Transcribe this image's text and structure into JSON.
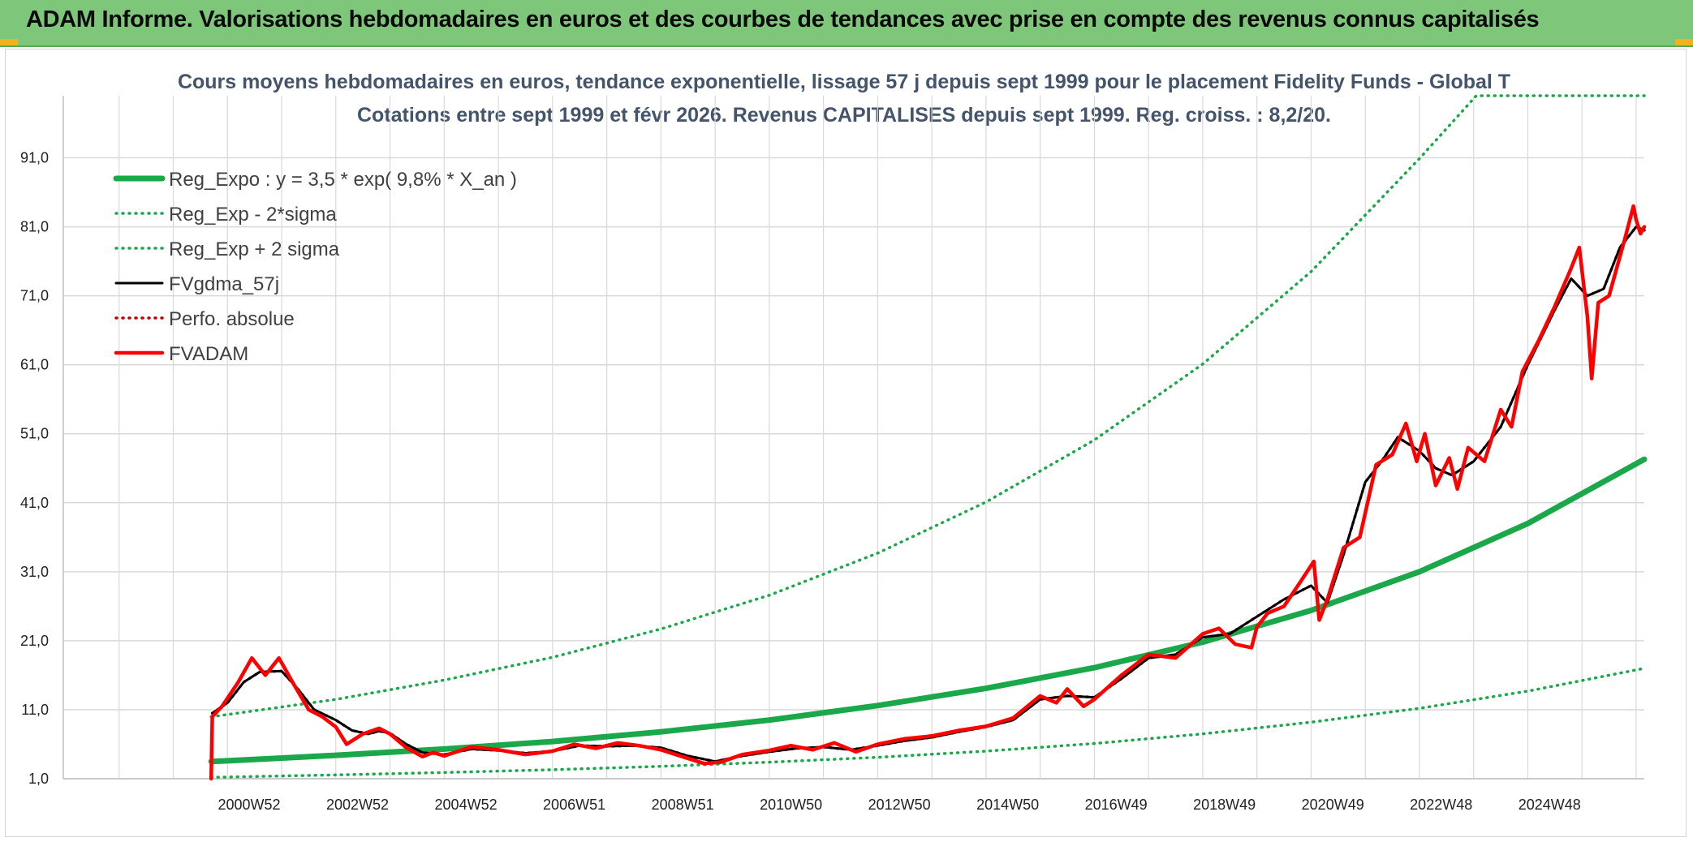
{
  "header": {
    "banner_title": "ADAM Informe. Valorisations hebdomadaires en euros et des courbes de tendances avec prise en compte des revenus connus capitalisés"
  },
  "colors": {
    "banner_bg": "#7dc67a",
    "regression": "#1aa84a",
    "price": "#ff0000",
    "moving_average": "#000000",
    "grid": "#d9d9d9"
  },
  "chart_data": {
    "type": "line",
    "title": "Cours moyens hebdomadaires en euros, tendance exponentielle, lissage 57 j depuis sept 1999 pour le placement Fidelity Funds - Global T",
    "subtitle": "Cotations entre sept 1999 et févr 2026. Revenus CAPITALISES depuis sept 1999. Reg. croiss. : 8,2/20.",
    "xlabel": "",
    "ylabel": "",
    "ylim": [
      1,
      100
    ],
    "y_ticks": [
      "1,0",
      "11,0",
      "21,0",
      "31,0",
      "41,0",
      "51,0",
      "61,0",
      "71,0",
      "81,0",
      "91,0"
    ],
    "x_ticks": [
      "2000W52",
      "2002W52",
      "2004W52",
      "2006W51",
      "2008W51",
      "2010W50",
      "2012W50",
      "2014W50",
      "2016W49",
      "2018W49",
      "2020W49",
      "2022W48",
      "2024W48"
    ],
    "grid": true,
    "legend_position": "top-left",
    "x_start": 1999.7,
    "x_end": 2026.15,
    "series": [
      {
        "name": "Reg_Expo : y = 3,5 * exp( 9,8% *  X_an )",
        "style": "solid-thick",
        "color": "#1aa84a",
        "points": [
          [
            1999.7,
            3.5
          ],
          [
            2000.0,
            3.6
          ],
          [
            2002.0,
            4.4
          ],
          [
            2004.0,
            5.3
          ],
          [
            2006.0,
            6.4
          ],
          [
            2008.0,
            7.8
          ],
          [
            2010.0,
            9.5
          ],
          [
            2012.0,
            11.6
          ],
          [
            2014.0,
            14.1
          ],
          [
            2016.0,
            17.1
          ],
          [
            2018.0,
            20.8
          ],
          [
            2020.0,
            25.4
          ],
          [
            2022.0,
            31.0
          ],
          [
            2024.0,
            38.0
          ],
          [
            2026.15,
            47.3
          ]
        ]
      },
      {
        "name": "Reg_Exp - 2*sigma",
        "style": "dotted",
        "color": "#1aa84a",
        "points": [
          [
            1999.7,
            1.2
          ],
          [
            2000.0,
            1.25
          ],
          [
            2002.0,
            1.55
          ],
          [
            2004.0,
            1.9
          ],
          [
            2006.0,
            2.3
          ],
          [
            2008.0,
            2.8
          ],
          [
            2010.0,
            3.4
          ],
          [
            2012.0,
            4.1
          ],
          [
            2014.0,
            5.0
          ],
          [
            2016.0,
            6.1
          ],
          [
            2018.0,
            7.5
          ],
          [
            2020.0,
            9.2
          ],
          [
            2022.0,
            11.2
          ],
          [
            2024.0,
            13.7
          ],
          [
            2026.15,
            17.0
          ]
        ]
      },
      {
        "name": "Reg_Exp + 2 sigma",
        "style": "dotted",
        "color": "#1aa84a",
        "points": [
          [
            1999.7,
            10.0
          ],
          [
            2000.0,
            10.3
          ],
          [
            2002.0,
            12.5
          ],
          [
            2004.0,
            15.3
          ],
          [
            2006.0,
            18.6
          ],
          [
            2008.0,
            22.7
          ],
          [
            2010.0,
            27.6
          ],
          [
            2012.0,
            33.7
          ],
          [
            2014.0,
            41.1
          ],
          [
            2016.0,
            50.1
          ],
          [
            2018.0,
            61.1
          ],
          [
            2020.0,
            74.5
          ],
          [
            2022.0,
            90.9
          ],
          [
            2023.05,
            100.0
          ],
          [
            2026.15,
            100.0
          ]
        ]
      },
      {
        "name": "FVgdma_57j",
        "style": "solid",
        "color": "#000000",
        "points": [
          [
            1999.72,
            10.5
          ],
          [
            2000.0,
            12.0
          ],
          [
            2000.3,
            15.0
          ],
          [
            2000.6,
            16.5
          ],
          [
            2001.0,
            16.6
          ],
          [
            2001.3,
            14.0
          ],
          [
            2001.6,
            11.0
          ],
          [
            2002.0,
            9.5
          ],
          [
            2002.3,
            8.0
          ],
          [
            2002.6,
            7.5
          ],
          [
            2002.8,
            7.9
          ],
          [
            2003.0,
            7.6
          ],
          [
            2003.3,
            6.0
          ],
          [
            2003.6,
            4.8
          ],
          [
            2004.0,
            4.5
          ],
          [
            2004.5,
            5.3
          ],
          [
            2005.0,
            5.1
          ],
          [
            2005.5,
            4.7
          ],
          [
            2006.0,
            5.0
          ],
          [
            2006.5,
            5.8
          ],
          [
            2007.0,
            5.7
          ],
          [
            2007.5,
            5.8
          ],
          [
            2008.0,
            5.5
          ],
          [
            2008.5,
            4.3
          ],
          [
            2009.0,
            3.5
          ],
          [
            2009.5,
            4.3
          ],
          [
            2010.0,
            4.9
          ],
          [
            2010.5,
            5.4
          ],
          [
            2011.0,
            5.6
          ],
          [
            2011.5,
            5.2
          ],
          [
            2012.0,
            5.8
          ],
          [
            2012.5,
            6.5
          ],
          [
            2013.0,
            7.0
          ],
          [
            2013.5,
            7.8
          ],
          [
            2014.0,
            8.5
          ],
          [
            2014.5,
            9.5
          ],
          [
            2015.0,
            12.5
          ],
          [
            2015.5,
            13.0
          ],
          [
            2016.0,
            12.8
          ],
          [
            2016.5,
            15.5
          ],
          [
            2017.0,
            18.5
          ],
          [
            2017.5,
            19.0
          ],
          [
            2018.0,
            21.5
          ],
          [
            2018.5,
            22.0
          ],
          [
            2019.0,
            24.5
          ],
          [
            2019.5,
            27.0
          ],
          [
            2020.0,
            29.0
          ],
          [
            2020.3,
            26.5
          ],
          [
            2020.6,
            33.5
          ],
          [
            2021.0,
            44.0
          ],
          [
            2021.3,
            47.0
          ],
          [
            2021.6,
            50.5
          ],
          [
            2022.0,
            48.5
          ],
          [
            2022.3,
            46.0
          ],
          [
            2022.6,
            45.0
          ],
          [
            2023.0,
            47.0
          ],
          [
            2023.5,
            52.0
          ],
          [
            2024.0,
            61.0
          ],
          [
            2024.5,
            69.0
          ],
          [
            2024.8,
            73.5
          ],
          [
            2025.1,
            71.0
          ],
          [
            2025.4,
            72.0
          ],
          [
            2025.7,
            78.0
          ],
          [
            2026.0,
            81.0
          ],
          [
            2026.15,
            80.5
          ]
        ]
      },
      {
        "name": "Perfo. absolue",
        "style": "dotted",
        "color": "#c00000",
        "points": [
          [
            1999.72,
            10.5
          ],
          [
            2000.0,
            12.0
          ],
          [
            2000.3,
            15.0
          ],
          [
            2000.6,
            16.5
          ],
          [
            2001.0,
            16.6
          ],
          [
            2001.3,
            14.0
          ],
          [
            2001.6,
            11.0
          ],
          [
            2002.0,
            9.5
          ],
          [
            2002.3,
            8.0
          ],
          [
            2002.6,
            7.5
          ],
          [
            2002.8,
            7.9
          ],
          [
            2003.0,
            7.6
          ],
          [
            2003.3,
            6.0
          ],
          [
            2003.6,
            4.8
          ],
          [
            2004.0,
            4.5
          ],
          [
            2004.5,
            5.3
          ],
          [
            2005.0,
            5.1
          ],
          [
            2005.5,
            4.7
          ],
          [
            2006.0,
            5.0
          ],
          [
            2006.5,
            5.8
          ],
          [
            2007.0,
            5.7
          ],
          [
            2007.5,
            5.8
          ],
          [
            2008.0,
            5.5
          ],
          [
            2008.5,
            4.3
          ],
          [
            2009.0,
            3.5
          ],
          [
            2009.5,
            4.3
          ],
          [
            2010.0,
            4.9
          ],
          [
            2010.5,
            5.4
          ],
          [
            2011.0,
            5.6
          ],
          [
            2011.5,
            5.2
          ],
          [
            2012.0,
            5.8
          ],
          [
            2012.5,
            6.5
          ],
          [
            2013.0,
            7.0
          ],
          [
            2013.5,
            7.8
          ],
          [
            2014.0,
            8.5
          ],
          [
            2014.5,
            9.5
          ],
          [
            2015.0,
            12.5
          ],
          [
            2015.5,
            13.0
          ],
          [
            2016.0,
            12.8
          ],
          [
            2016.5,
            15.5
          ],
          [
            2017.0,
            18.5
          ],
          [
            2017.5,
            19.0
          ],
          [
            2018.0,
            21.5
          ],
          [
            2018.5,
            22.0
          ],
          [
            2019.0,
            24.5
          ],
          [
            2019.5,
            27.0
          ],
          [
            2020.0,
            29.0
          ],
          [
            2020.3,
            26.5
          ],
          [
            2020.6,
            33.5
          ],
          [
            2021.0,
            44.0
          ],
          [
            2021.3,
            47.0
          ],
          [
            2021.6,
            50.5
          ],
          [
            2022.0,
            48.5
          ],
          [
            2022.3,
            46.0
          ],
          [
            2022.6,
            45.0
          ],
          [
            2023.0,
            47.0
          ],
          [
            2023.5,
            52.0
          ],
          [
            2024.0,
            61.0
          ],
          [
            2024.5,
            69.0
          ],
          [
            2024.8,
            73.5
          ],
          [
            2025.1,
            71.0
          ],
          [
            2025.4,
            72.0
          ],
          [
            2025.7,
            78.0
          ],
          [
            2026.0,
            81.0
          ],
          [
            2026.15,
            80.5
          ]
        ]
      },
      {
        "name": "FVADAM",
        "style": "solid-thick",
        "color": "#ff0000",
        "points": [
          [
            1999.7,
            1.0
          ],
          [
            1999.72,
            10.0
          ],
          [
            1999.9,
            11.5
          ],
          [
            2000.2,
            15.0
          ],
          [
            2000.45,
            18.5
          ],
          [
            2000.7,
            16.0
          ],
          [
            2000.95,
            18.5
          ],
          [
            2001.2,
            15.0
          ],
          [
            2001.5,
            11.0
          ],
          [
            2001.75,
            10.0
          ],
          [
            2002.0,
            8.5
          ],
          [
            2002.2,
            6.0
          ],
          [
            2002.5,
            7.5
          ],
          [
            2002.8,
            8.3
          ],
          [
            2003.0,
            7.5
          ],
          [
            2003.3,
            5.5
          ],
          [
            2003.6,
            4.2
          ],
          [
            2003.8,
            4.8
          ],
          [
            2004.0,
            4.3
          ],
          [
            2004.5,
            5.6
          ],
          [
            2005.0,
            5.2
          ],
          [
            2005.5,
            4.5
          ],
          [
            2006.0,
            5.0
          ],
          [
            2006.4,
            6.0
          ],
          [
            2006.8,
            5.4
          ],
          [
            2007.2,
            6.2
          ],
          [
            2007.6,
            5.8
          ],
          [
            2008.0,
            5.2
          ],
          [
            2008.4,
            4.2
          ],
          [
            2008.8,
            3.2
          ],
          [
            2009.1,
            3.4
          ],
          [
            2009.5,
            4.5
          ],
          [
            2010.0,
            5.1
          ],
          [
            2010.4,
            5.8
          ],
          [
            2010.8,
            5.2
          ],
          [
            2011.2,
            6.2
          ],
          [
            2011.6,
            4.9
          ],
          [
            2012.0,
            6.0
          ],
          [
            2012.5,
            6.8
          ],
          [
            2013.0,
            7.2
          ],
          [
            2013.5,
            8.0
          ],
          [
            2014.0,
            8.6
          ],
          [
            2014.5,
            9.8
          ],
          [
            2015.0,
            13.0
          ],
          [
            2015.3,
            12.0
          ],
          [
            2015.5,
            14.0
          ],
          [
            2015.8,
            11.5
          ],
          [
            2016.0,
            12.5
          ],
          [
            2016.5,
            16.0
          ],
          [
            2017.0,
            19.0
          ],
          [
            2017.5,
            18.5
          ],
          [
            2018.0,
            22.0
          ],
          [
            2018.3,
            22.8
          ],
          [
            2018.6,
            20.5
          ],
          [
            2018.9,
            20.0
          ],
          [
            2019.0,
            23.0
          ],
          [
            2019.2,
            25.0
          ],
          [
            2019.5,
            26.0
          ],
          [
            2019.8,
            29.5
          ],
          [
            2020.05,
            32.5
          ],
          [
            2020.15,
            24.0
          ],
          [
            2020.3,
            27.0
          ],
          [
            2020.6,
            34.5
          ],
          [
            2020.9,
            36.0
          ],
          [
            2021.2,
            46.5
          ],
          [
            2021.5,
            48.0
          ],
          [
            2021.75,
            52.5
          ],
          [
            2021.95,
            47.0
          ],
          [
            2022.1,
            51.0
          ],
          [
            2022.3,
            43.5
          ],
          [
            2022.55,
            47.5
          ],
          [
            2022.7,
            43.0
          ],
          [
            2022.9,
            49.0
          ],
          [
            2023.2,
            47.0
          ],
          [
            2023.5,
            54.5
          ],
          [
            2023.7,
            52.0
          ],
          [
            2023.9,
            60.0
          ],
          [
            2024.2,
            64.5
          ],
          [
            2024.5,
            69.5
          ],
          [
            2024.8,
            75.0
          ],
          [
            2024.95,
            78.0
          ],
          [
            2025.1,
            68.0
          ],
          [
            2025.18,
            59.0
          ],
          [
            2025.3,
            70.0
          ],
          [
            2025.5,
            71.0
          ],
          [
            2025.8,
            79.5
          ],
          [
            2025.95,
            84.0
          ],
          [
            2026.0,
            82.0
          ],
          [
            2026.08,
            80.0
          ],
          [
            2026.15,
            81.0
          ]
        ]
      }
    ]
  }
}
